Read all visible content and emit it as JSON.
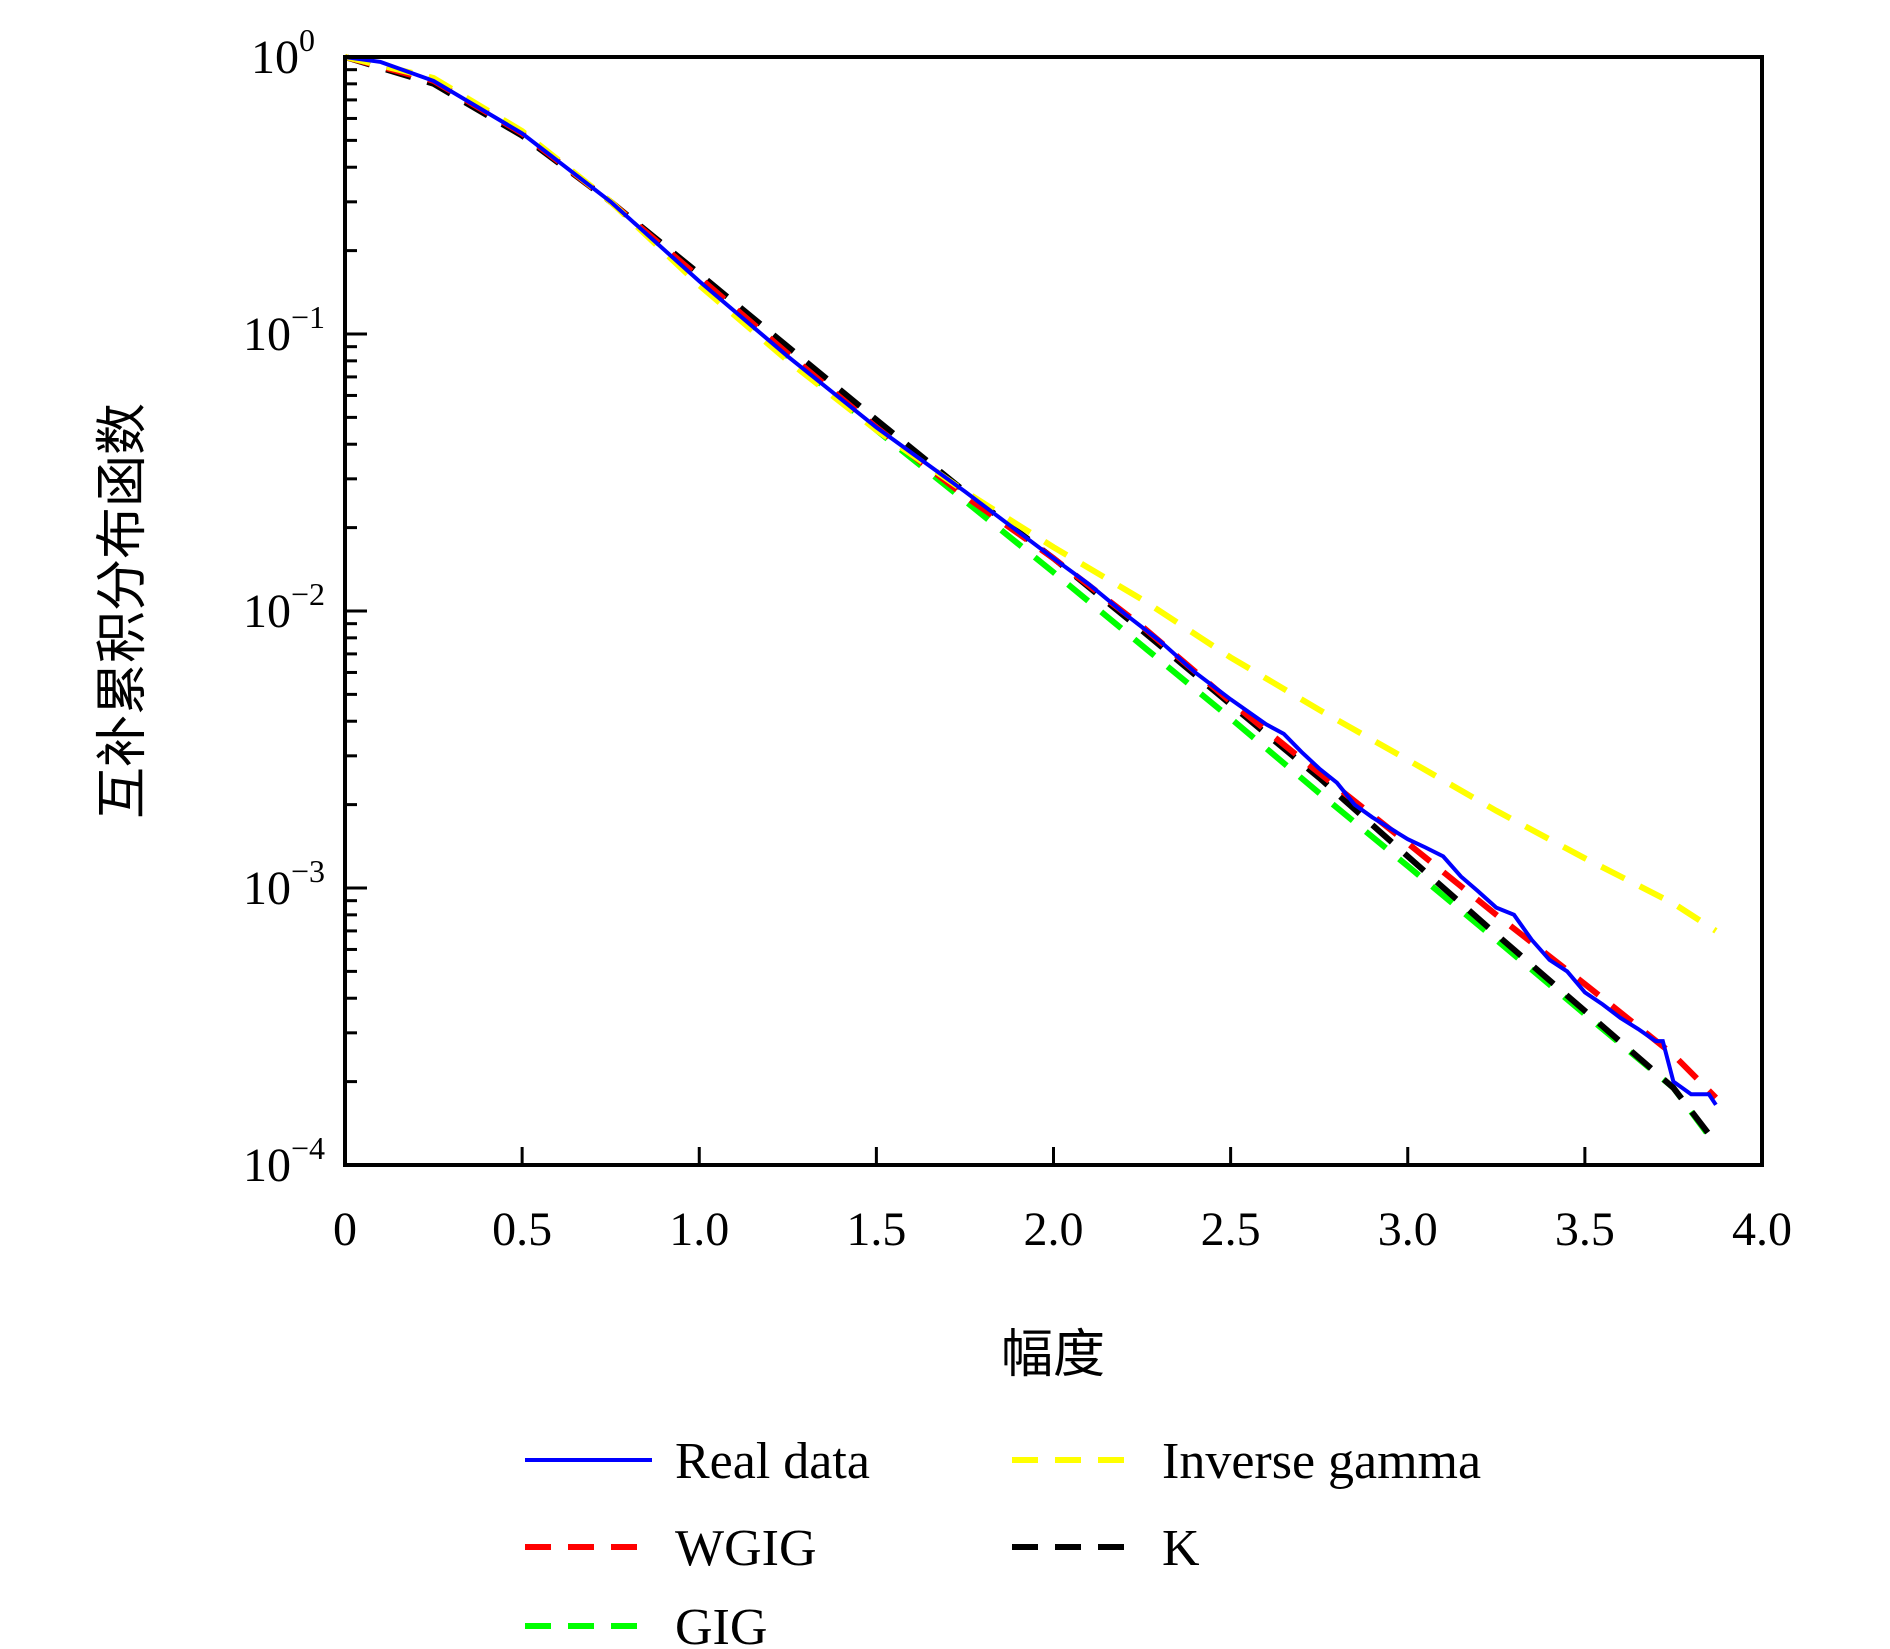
{
  "chart_data": {
    "type": "line",
    "xlabel": "幅度",
    "ylabel": "互补累积分布函数",
    "xlim": [
      0,
      4.0
    ],
    "ylim": [
      0.0001,
      1
    ],
    "yscale": "log",
    "grid": false,
    "legend_position": "bottom-outside",
    "x_ticks": [
      "0",
      "0.5",
      "1.0",
      "1.5",
      "2.0",
      "2.5",
      "3.0",
      "3.5",
      "4.0"
    ],
    "x_tick_values": [
      0,
      0.5,
      1.0,
      1.5,
      2.0,
      2.5,
      3.0,
      3.5,
      4.0
    ],
    "y_ticks": [
      {
        "base": "10",
        "exp": "0",
        "value": 1
      },
      {
        "base": "10",
        "exp": "−1",
        "value": 0.1
      },
      {
        "base": "10",
        "exp": "−2",
        "value": 0.01
      },
      {
        "base": "10",
        "exp": "−3",
        "value": 0.001
      },
      {
        "base": "10",
        "exp": "−4",
        "value": 0.0001
      }
    ],
    "series": [
      {
        "name": "Real data",
        "color": "#0000ff",
        "style": "solid",
        "x": [
          0,
          0.1,
          0.25,
          0.5,
          0.75,
          1.0,
          1.25,
          1.5,
          1.75,
          2.0,
          2.1,
          2.2,
          2.3,
          2.4,
          2.5,
          2.6,
          2.65,
          2.7,
          2.75,
          2.8,
          2.85,
          2.9,
          3.0,
          3.05,
          3.1,
          3.15,
          3.2,
          3.25,
          3.3,
          3.35,
          3.4,
          3.45,
          3.5,
          3.55,
          3.6,
          3.65,
          3.7,
          3.72,
          3.75,
          3.8,
          3.85,
          3.87
        ],
        "y": [
          1,
          0.96,
          0.82,
          0.53,
          0.3,
          0.155,
          0.083,
          0.046,
          0.027,
          0.0155,
          0.0125,
          0.0098,
          0.0078,
          0.006,
          0.0048,
          0.0039,
          0.0036,
          0.0031,
          0.0027,
          0.0024,
          0.002,
          0.0018,
          0.0015,
          0.0014,
          0.0013,
          0.0011,
          0.00097,
          0.00085,
          0.0008,
          0.00065,
          0.00055,
          0.0005,
          0.00042,
          0.00038,
          0.00034,
          0.00031,
          0.00028,
          0.00028,
          0.0002,
          0.00018,
          0.00018,
          0.000165
        ]
      },
      {
        "name": "Inverse gamma",
        "color": "#ffff00",
        "style": "dashed",
        "x": [
          0,
          0.25,
          0.5,
          0.75,
          1.0,
          1.25,
          1.5,
          1.75,
          2.0,
          2.25,
          2.5,
          2.75,
          3.0,
          3.25,
          3.5,
          3.75,
          3.87
        ],
        "y": [
          1,
          0.84,
          0.54,
          0.3,
          0.15,
          0.08,
          0.045,
          0.027,
          0.017,
          0.011,
          0.0068,
          0.0044,
          0.0029,
          0.0019,
          0.00128,
          0.00088,
          0.0007
        ]
      },
      {
        "name": "WGIG",
        "color": "#ff0000",
        "style": "dashed",
        "x": [
          0,
          0.25,
          0.5,
          0.75,
          1.0,
          1.25,
          1.5,
          1.75,
          2.0,
          2.25,
          2.5,
          2.75,
          3.0,
          3.25,
          3.5,
          3.75,
          3.87
        ],
        "y": [
          1,
          0.82,
          0.53,
          0.3,
          0.16,
          0.085,
          0.046,
          0.026,
          0.0155,
          0.0088,
          0.0047,
          0.0026,
          0.00145,
          0.0008,
          0.00045,
          0.00025,
          0.000175
        ]
      },
      {
        "name": "K",
        "color": "#000000",
        "style": "dashed",
        "x": [
          0,
          0.25,
          0.5,
          0.75,
          1.0,
          1.25,
          1.5,
          1.75,
          2.0,
          2.25,
          2.5,
          2.75,
          3.0,
          3.25,
          3.5,
          3.75,
          3.87
        ],
        "y": [
          1,
          0.8,
          0.52,
          0.3,
          0.165,
          0.09,
          0.049,
          0.027,
          0.0155,
          0.0085,
          0.0046,
          0.0025,
          0.0013,
          0.00068,
          0.00036,
          0.00019,
          0.00012
        ]
      },
      {
        "name": "GIG",
        "color": "#00ff00",
        "style": "dashed",
        "x": [
          0,
          0.25,
          0.5,
          0.75,
          1.0,
          1.25,
          1.5,
          1.75,
          2.0,
          2.25,
          2.5,
          2.75,
          3.0,
          3.25,
          3.5,
          3.75,
          3.87
        ],
        "y": [
          1,
          0.82,
          0.53,
          0.3,
          0.158,
          0.083,
          0.045,
          0.025,
          0.0138,
          0.0075,
          0.0041,
          0.0022,
          0.0012,
          0.00065,
          0.00035,
          0.00019,
          0.000118
        ]
      }
    ],
    "legend": [
      {
        "name": "Real data",
        "color": "#0000ff",
        "style": "solid"
      },
      {
        "name": "Inverse gamma",
        "color": "#ffff00",
        "style": "dashed"
      },
      {
        "name": "WGIG",
        "color": "#ff0000",
        "style": "dashed"
      },
      {
        "name": "K",
        "color": "#000000",
        "style": "dashed"
      },
      {
        "name": "GIG",
        "color": "#00ff00",
        "style": "dashed"
      }
    ]
  }
}
